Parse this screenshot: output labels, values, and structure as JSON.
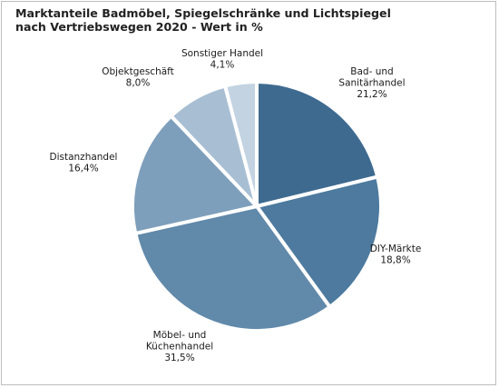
{
  "chart_data": {
    "type": "pie",
    "title": "Marktanteile Badmöbel, Spiegelschränke und Lichtspiegel nach Vertriebswegen 2020 - Wert in %",
    "unit": "%",
    "slices": [
      {
        "label_lines": [
          "Bad- und",
          "Sanitärhandel"
        ],
        "value_label": "21,2%",
        "value": 21.2,
        "color": "#3e6a90"
      },
      {
        "label_lines": [
          "DIY-Märkte"
        ],
        "value_label": "18,8%",
        "value": 18.8,
        "color": "#4d7a9e"
      },
      {
        "label_lines": [
          "Möbel- und",
          "Küchenhandel"
        ],
        "value_label": "31,5%",
        "value": 31.5,
        "color": "#6189aa"
      },
      {
        "label_lines": [
          "Distanzhandel"
        ],
        "value_label": "16,4%",
        "value": 16.4,
        "color": "#7e9fbb"
      },
      {
        "label_lines": [
          "Objektgeschäft"
        ],
        "value_label": "8,0%",
        "value": 8.0,
        "color": "#a8bfd3"
      },
      {
        "label_lines": [
          "Sonstiger Handel"
        ],
        "value_label": "4,1%",
        "value": 4.1,
        "color": "#c3d3e2"
      }
    ]
  }
}
